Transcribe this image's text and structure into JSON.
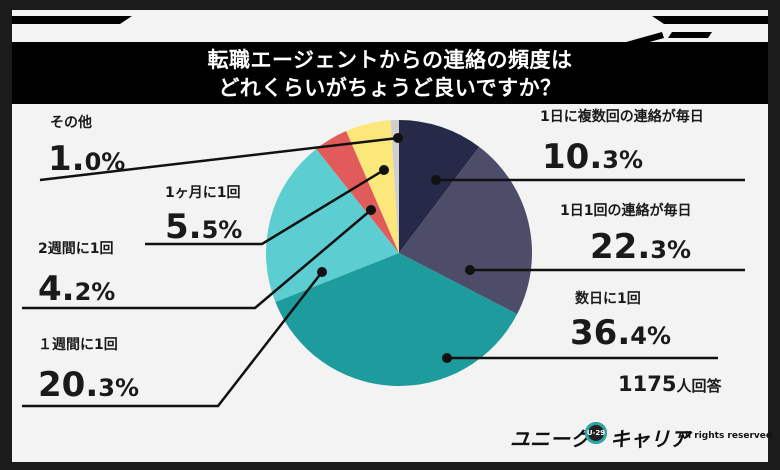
{
  "title": {
    "line1": "転職エージェントからの連絡の頻度は",
    "line2": "どれくらいがちょうど良いですか？"
  },
  "respondents": {
    "count": "1175",
    "unit": "人回答"
  },
  "brand": {
    "name_left": "ユニーク",
    "badge": "U-29",
    "name_right": "キャリア",
    "rights": "All rights reserved"
  },
  "chart_data": {
    "type": "pie",
    "start": "12 o'clock, clockwise",
    "slices": [
      {
        "label": "1日に複数回の連絡が毎日",
        "value": 10.3,
        "num": "10.",
        "dec": "3",
        "pct": "%",
        "color": "#262a48"
      },
      {
        "label": "1日1回の連絡が毎日",
        "value": 22.3,
        "num": "22.",
        "dec": "3",
        "pct": "%",
        "color": "#4d4c69"
      },
      {
        "label": "数日に1回",
        "value": 36.4,
        "num": "36.",
        "dec": "4",
        "pct": "%",
        "color": "#1d9b9d"
      },
      {
        "label": "１週間に1回",
        "value": 20.3,
        "num": "20.",
        "dec": "3",
        "pct": "%",
        "color": "#5ccdd1"
      },
      {
        "label": "2週間に1回",
        "value": 4.2,
        "num": "4.",
        "dec": "2",
        "pct": "%",
        "color": "#e15b5b"
      },
      {
        "label": "1ヶ月に1回",
        "value": 5.5,
        "num": "5.",
        "dec": "5",
        "pct": "%",
        "color": "#fbe77a"
      },
      {
        "label": "その他",
        "value": 1.0,
        "num": "1.",
        "dec": "0",
        "pct": "%",
        "color": "#cfcfcf"
      }
    ]
  }
}
